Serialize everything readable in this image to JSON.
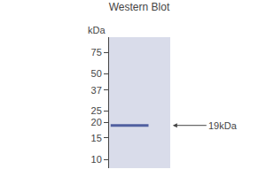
{
  "chart_data": {
    "type": "blot",
    "title": "Western Blot",
    "ylabel": "kDa",
    "log": "y",
    "ylim": [
      8.5,
      100
    ],
    "yticks": [
      75,
      50,
      37,
      25,
      20,
      15,
      10
    ],
    "values": [
      19
    ],
    "value_labels": [
      "19kDa"
    ],
    "data_labels": true,
    "color": "#5060a0",
    "grid": false
  }
}
